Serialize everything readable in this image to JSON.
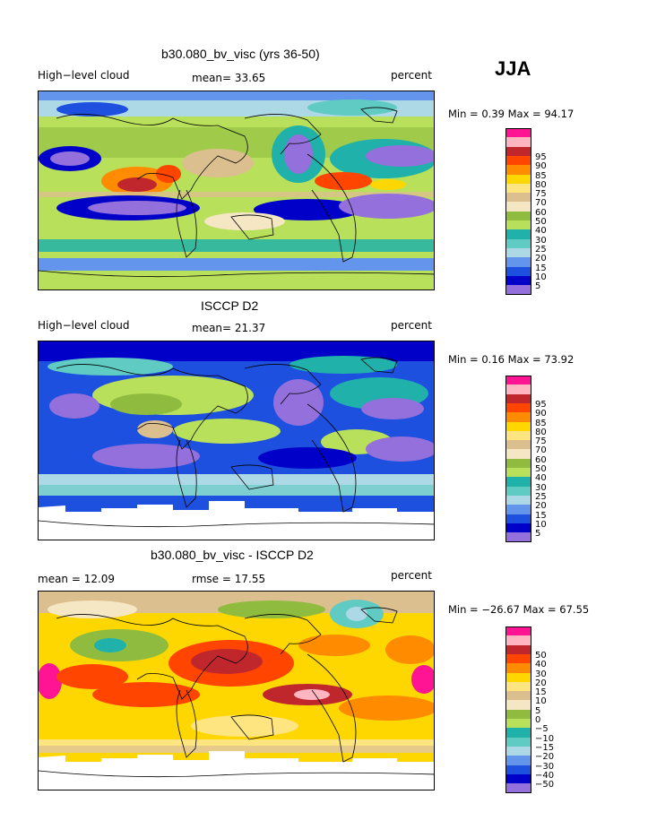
{
  "season": "JJA",
  "panels": [
    {
      "title": "b30.080_bv_visc (yrs 36-50)",
      "left_label": "High−level cloud",
      "stat_text": "mean=  33.65",
      "rmse_text": "",
      "units": "percent",
      "minmax": "Min =   0.39 Max =  94.17",
      "colorbar": {
        "colors": [
          "#ff1493",
          "#ffb6c1",
          "#c0272d",
          "#ff4500",
          "#ff8c00",
          "#ffd700",
          "#ffe57f",
          "#dcbf8f",
          "#f5e6c4",
          "#8fbc3f",
          "#b8e05a",
          "#20b2aa",
          "#5fcbc2",
          "#add8e6",
          "#6495ed",
          "#1e50e0",
          "#0000c8",
          "#9370db"
        ],
        "ticks": [
          "95",
          "90",
          "85",
          "80",
          "75",
          "70",
          "60",
          "50",
          "40",
          "30",
          "25",
          "20",
          "15",
          "10",
          "5"
        ]
      },
      "has_antarctic_mask": false
    },
    {
      "title": "ISCCP D2",
      "left_label": "High−level cloud",
      "stat_text": "mean=  21.37",
      "rmse_text": "",
      "units": "percent",
      "minmax": "Min =   0.16 Max =  73.92",
      "colorbar": {
        "colors": [
          "#ff1493",
          "#ffb6c1",
          "#c0272d",
          "#ff4500",
          "#ff8c00",
          "#ffd700",
          "#ffe57f",
          "#dcbf8f",
          "#f5e6c4",
          "#8fbc3f",
          "#b8e05a",
          "#20b2aa",
          "#5fcbc2",
          "#add8e6",
          "#6495ed",
          "#1e50e0",
          "#0000c8",
          "#9370db"
        ],
        "ticks": [
          "95",
          "90",
          "85",
          "80",
          "75",
          "70",
          "60",
          "50",
          "40",
          "30",
          "25",
          "20",
          "15",
          "10",
          "5"
        ]
      },
      "has_antarctic_mask": true
    },
    {
      "title": "b30.080_bv_visc - ISCCP D2",
      "left_label": "mean =   12.09",
      "stat_text": "",
      "rmse_text": "rmse =   17.55",
      "units": "percent",
      "minmax": "Min = −26.67 Max =  67.55",
      "colorbar": {
        "colors": [
          "#ff1493",
          "#ffb6c1",
          "#c0272d",
          "#ff4500",
          "#ff8c00",
          "#ffd700",
          "#ffe57f",
          "#dcbf8f",
          "#f5e6c4",
          "#8fbc3f",
          "#b8e05a",
          "#20b2aa",
          "#5fcbc2",
          "#add8e6",
          "#6495ed",
          "#1e50e0",
          "#0000c8",
          "#9370db"
        ],
        "ticks": [
          "50",
          "40",
          "30",
          "20",
          "15",
          "10",
          "5",
          "0",
          "−5",
          "−10",
          "−15",
          "−20",
          "−30",
          "−40",
          "−50"
        ]
      },
      "has_antarctic_mask": true
    }
  ]
}
